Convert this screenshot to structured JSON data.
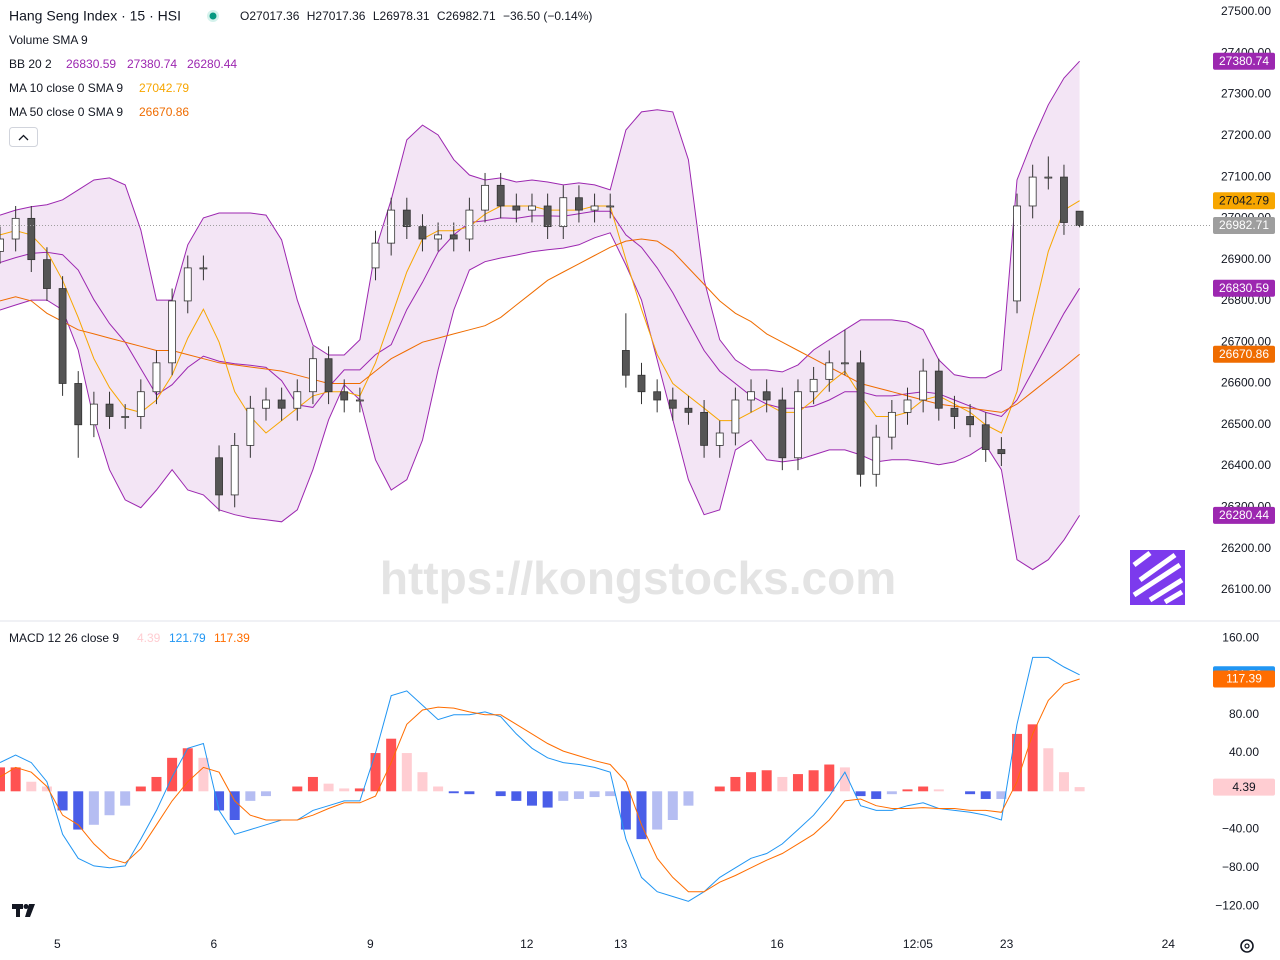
{
  "header": {
    "title": "Hang Seng Index · 15 · HSI",
    "ohlc_labels": [
      "O",
      "H",
      "L",
      "C"
    ],
    "change": "−36.50 (−0.14%)",
    "volume_legend": "Volume SMA 9",
    "watermark": "https://kongstocks.com"
  },
  "chart_data": [
    {
      "type": "candlestick",
      "x": [
        0,
        3,
        6,
        9,
        12,
        15,
        18,
        21,
        24,
        27,
        30,
        33,
        36,
        39,
        42,
        45,
        48,
        51,
        54,
        57,
        60,
        63,
        66,
        69,
        72,
        75,
        78,
        81,
        84,
        87,
        90,
        93,
        96,
        99,
        102,
        105,
        108,
        111,
        114,
        117,
        120,
        123,
        126,
        129,
        132,
        135,
        138,
        141,
        144,
        147,
        150,
        153,
        156,
        159,
        162,
        165,
        168,
        171,
        174,
        177,
        180,
        183,
        186,
        189,
        192,
        195,
        198,
        201,
        204,
        207
      ],
      "open": [
        26920,
        26950,
        27000,
        26900,
        26830,
        26600,
        26500,
        26550,
        26520,
        26520,
        26580,
        26650,
        26800,
        26880,
        26420,
        26330,
        26450,
        26540,
        26560,
        26540,
        26580,
        26660,
        26580,
        26560,
        26880,
        26940,
        27020,
        26980,
        26950,
        26960,
        26950,
        27020,
        27080,
        27030,
        27020,
        27030,
        26980,
        27050,
        27020,
        27030,
        26680,
        26620,
        26580,
        26560,
        26540,
        26530,
        26450,
        26480,
        26560,
        26580,
        26560,
        26420,
        26580,
        26610,
        26650,
        26650,
        26380,
        26470,
        26530,
        26560,
        26630,
        26540,
        26520,
        26500,
        26440,
        26800,
        27030,
        27100,
        27100,
        27017.36
      ],
      "high": [
        26980,
        27030,
        27030,
        26930,
        26860,
        26630,
        26580,
        26580,
        26550,
        26610,
        26680,
        26830,
        26910,
        26910,
        26450,
        26480,
        26570,
        26590,
        26590,
        26610,
        26690,
        26690,
        26610,
        26590,
        26970,
        27050,
        27050,
        27010,
        26990,
        26990,
        27050,
        27110,
        27110,
        27060,
        27060,
        27060,
        27080,
        27080,
        27060,
        27060,
        26770,
        26650,
        26610,
        26590,
        26570,
        26560,
        26510,
        26590,
        26610,
        26610,
        26590,
        26610,
        26640,
        26680,
        26730,
        26680,
        26500,
        26560,
        26590,
        26660,
        26660,
        26570,
        26550,
        26530,
        26470,
        27060,
        27130,
        27150,
        27130,
        27017.36
      ],
      "low": [
        26890,
        26920,
        26870,
        26800,
        26570,
        26420,
        26470,
        26490,
        26490,
        26490,
        26550,
        26620,
        26770,
        26850,
        26290,
        26300,
        26420,
        26510,
        26510,
        26510,
        26550,
        26550,
        26530,
        26530,
        26850,
        26910,
        26950,
        26920,
        26920,
        26920,
        26920,
        26990,
        27000,
        26990,
        26990,
        26950,
        26950,
        26990,
        26990,
        27000,
        26590,
        26550,
        26530,
        26510,
        26500,
        26420,
        26420,
        26450,
        26530,
        26530,
        26390,
        26390,
        26550,
        26580,
        26620,
        26350,
        26350,
        26440,
        26500,
        26530,
        26510,
        26490,
        26470,
        26410,
        26400,
        26770,
        27000,
        27070,
        26960,
        26978.31
      ],
      "close": [
        26950,
        27000,
        26900,
        26830,
        26600,
        26500,
        26550,
        26520,
        26520,
        26580,
        26650,
        26800,
        26880,
        26880,
        26330,
        26450,
        26540,
        26560,
        26540,
        26580,
        26660,
        26580,
        26560,
        26560,
        26940,
        27020,
        26980,
        26950,
        26960,
        26950,
        27020,
        27080,
        27030,
        27020,
        27030,
        26980,
        27050,
        27020,
        27030,
        27030,
        26620,
        26580,
        26560,
        26540,
        26530,
        26450,
        26480,
        26560,
        26580,
        26560,
        26420,
        26580,
        26610,
        26650,
        26650,
        26380,
        26470,
        26530,
        26560,
        26630,
        26540,
        26520,
        26500,
        26440,
        26430,
        27030,
        27100,
        27100,
        26990,
        26982.71
      ],
      "up_color": "#ffffff",
      "down_color": "#555555",
      "wick_color": "#333333",
      "last_price_color": "#9e9e9e",
      "bollinger": {
        "label": "BB 20 2",
        "color": "#9c27b0",
        "fill_color": "#f3e5f5",
        "basis": [
          26893,
          26905,
          26915,
          26918,
          26912,
          26875,
          26803,
          26745,
          26700,
          26636,
          26572,
          26597,
          26639,
          26666,
          26654,
          26648,
          26644,
          26639,
          26607,
          26548,
          26542,
          26591,
          26633,
          26633,
          26670,
          26694,
          26779,
          26845,
          26918,
          26960,
          26990,
          26994,
          27001,
          27000,
          27006,
          27006,
          27005,
          27011,
          27017,
          27017,
          26960,
          26930,
          26880,
          26820,
          26750,
          26680,
          26630,
          26600,
          26570,
          26550,
          26540,
          26540,
          26545,
          26560,
          26580,
          26580,
          26570,
          26570,
          26575,
          26580,
          26575,
          26560,
          26545,
          26530,
          26520,
          26560,
          26630,
          26700,
          26770,
          26830.59
        ],
        "upper": [
          27008,
          27020,
          27028,
          27033,
          27045,
          27069,
          27093,
          27098,
          27081,
          26972,
          26802,
          26802,
          26936,
          27001,
          27013,
          27013,
          27013,
          27008,
          26948,
          26802,
          26693,
          26669,
          26669,
          26706,
          26924,
          27045,
          27190,
          27226,
          27202,
          27142,
          27105,
          27093,
          27098,
          27088,
          27093,
          27088,
          27081,
          27086,
          27081,
          27069,
          27214,
          27258,
          27263,
          27258,
          27142,
          26851,
          26706,
          26657,
          26633,
          26633,
          26628,
          26645,
          26681,
          26706,
          26730,
          26754,
          26754,
          26754,
          26749,
          26730,
          26657,
          26621,
          26614,
          26614,
          26633,
          27093,
          27190,
          27275,
          27340,
          27380.74
        ],
        "lower": [
          26778,
          26790,
          26802,
          26802,
          26778,
          26681,
          26512,
          26391,
          26318,
          26299,
          26342,
          26391,
          26342,
          26330,
          26294,
          26282,
          26274,
          26270,
          26265,
          26294,
          26391,
          26512,
          26597,
          26560,
          26415,
          26342,
          26367,
          26463,
          26633,
          26778,
          26875,
          26895,
          26904,
          26911,
          26919,
          26924,
          26928,
          26936,
          26953,
          26965,
          26887,
          26802,
          26657,
          26512,
          26367,
          26282,
          26294,
          26439,
          26463,
          26415,
          26410,
          26415,
          26427,
          26439,
          26439,
          26427,
          26410,
          26415,
          26415,
          26410,
          26403,
          26410,
          26427,
          26451,
          26391,
          26173,
          26149,
          26173,
          26221,
          26280.44
        ]
      },
      "moving_averages": [
        {
          "label": "MA 10 close 0 SMA 9",
          "color": "#f7a600",
          "values": [
            26960,
            26970,
            26960,
            26920,
            26850,
            26760,
            26660,
            26590,
            26540,
            26530,
            26560,
            26620,
            26710,
            26780,
            26700,
            26580,
            26520,
            26480,
            26510,
            26540,
            26570,
            26580,
            26580,
            26570,
            26650,
            26760,
            26870,
            26950,
            26970,
            26970,
            26980,
            27010,
            27030,
            27030,
            27030,
            27020,
            27020,
            27020,
            27030,
            27030,
            26900,
            26780,
            26670,
            26600,
            26570,
            26540,
            26510,
            26510,
            26530,
            26550,
            26530,
            26530,
            26560,
            26600,
            26630,
            26570,
            26520,
            26520,
            26530,
            26560,
            26570,
            26550,
            26530,
            26500,
            26480,
            26580,
            26760,
            26920,
            27020,
            27042.79
          ]
        },
        {
          "label": "MA 50 close 0 SMA 9",
          "color": "#ef6c00",
          "values": [
            26800,
            26810,
            26800,
            26770,
            26750,
            26730,
            26720,
            26710,
            26700,
            26690,
            26680,
            26680,
            26670,
            26660,
            26650,
            26645,
            26640,
            26635,
            26630,
            26620,
            26610,
            26600,
            26600,
            26600,
            26630,
            26660,
            26680,
            26700,
            26710,
            26720,
            26730,
            26740,
            26760,
            26790,
            26820,
            26850,
            26870,
            26890,
            26910,
            26930,
            26945,
            26950,
            26945,
            26920,
            26880,
            26840,
            26800,
            26770,
            26750,
            26720,
            26700,
            26680,
            26660,
            26640,
            26620,
            26600,
            26590,
            26580,
            26570,
            26560,
            26550,
            26545,
            26540,
            26535,
            26530,
            26550,
            26580,
            26610,
            26640,
            26670.86
          ]
        }
      ],
      "xlim": [
        0,
        232
      ],
      "xticks": [
        {
          "value": 11,
          "label": "5"
        },
        {
          "value": 41,
          "label": "6"
        },
        {
          "value": 71,
          "label": "9"
        },
        {
          "value": 101,
          "label": "12"
        },
        {
          "value": 119,
          "label": "13"
        },
        {
          "value": 149,
          "label": "16"
        },
        {
          "value": 176,
          "label": "12:05"
        },
        {
          "value": 193,
          "label": "23"
        },
        {
          "value": 224,
          "label": "24"
        }
      ],
      "ylim": [
        26027,
        27529
      ],
      "yticks": [
        {
          "value": 27500,
          "label": "27500.00"
        },
        {
          "value": 27400,
          "label": "27400.00"
        },
        {
          "value": 27300,
          "label": "27300.00"
        },
        {
          "value": 27200,
          "label": "27200.00"
        },
        {
          "value": 27100,
          "label": "27100.00"
        },
        {
          "value": 27000,
          "label": "27000.00"
        },
        {
          "value": 26900,
          "label": "26900.00"
        },
        {
          "value": 26800,
          "label": "26800.00"
        },
        {
          "value": 26700,
          "label": "26700.00"
        },
        {
          "value": 26600,
          "label": "26600.00"
        },
        {
          "value": 26500,
          "label": "26500.00"
        },
        {
          "value": 26400,
          "label": "26400.00"
        },
        {
          "value": 26300,
          "label": "26300.00"
        },
        {
          "value": 26200,
          "label": "26200.00"
        },
        {
          "value": 26100,
          "label": "26100.00"
        }
      ],
      "grid": false
    },
    {
      "type": "macd",
      "label": "MACD 12 26 close 9",
      "x": [
        0,
        3,
        6,
        9,
        12,
        15,
        18,
        21,
        24,
        27,
        30,
        33,
        36,
        39,
        42,
        45,
        48,
        51,
        54,
        57,
        60,
        63,
        66,
        69,
        72,
        75,
        78,
        81,
        84,
        87,
        90,
        93,
        96,
        99,
        102,
        105,
        108,
        111,
        114,
        117,
        120,
        123,
        126,
        129,
        132,
        135,
        138,
        141,
        144,
        147,
        150,
        153,
        156,
        159,
        162,
        165,
        168,
        171,
        174,
        177,
        180,
        183,
        186,
        189,
        192,
        195,
        198,
        201,
        204,
        207
      ],
      "histogram": [
        25,
        25,
        10,
        5,
        -20,
        -40,
        -35,
        -25,
        -15,
        5,
        15,
        35,
        45,
        35,
        -20,
        -30,
        -10,
        -5,
        0,
        5,
        15,
        8,
        3,
        3,
        40,
        55,
        40,
        20,
        5,
        -2,
        -3,
        0,
        -5,
        -10,
        -15,
        -17,
        -10,
        -8,
        -6,
        -5,
        -40,
        -50,
        -40,
        -30,
        -15,
        0,
        5,
        15,
        20,
        22,
        15,
        18,
        22,
        28,
        25,
        -5,
        -8,
        -3,
        2,
        5,
        2,
        0,
        -3,
        -8,
        -8,
        60,
        70,
        45,
        20,
        4.39
      ],
      "histogram_colors": {
        "rising_above": "#ff5252",
        "falling_above": "#ffcdd2",
        "falling_below": "#4a5ee8",
        "rising_below": "#b5bdf2"
      },
      "macd": {
        "color": "#2196f3",
        "values": [
          30,
          38,
          30,
          10,
          -45,
          -70,
          -78,
          -80,
          -78,
          -50,
          -20,
          15,
          45,
          50,
          -20,
          -45,
          -40,
          -35,
          -30,
          -30,
          -20,
          -15,
          -10,
          -10,
          40,
          100,
          105,
          90,
          75,
          80,
          80,
          83,
          78,
          60,
          45,
          35,
          30,
          28,
          25,
          20,
          -50,
          -90,
          -105,
          -110,
          -115,
          -105,
          -90,
          -80,
          -70,
          -65,
          -55,
          -40,
          -25,
          -5,
          20,
          -15,
          -20,
          -20,
          -15,
          -12,
          -18,
          -20,
          -22,
          -25,
          -30,
          70,
          140,
          140,
          130,
          121.79
        ]
      },
      "signal": {
        "color": "#ff6d00",
        "values": [
          15,
          25,
          20,
          5,
          -25,
          -35,
          -55,
          -70,
          -75,
          -60,
          -35,
          -10,
          10,
          25,
          20,
          -10,
          -25,
          -30,
          -30,
          -30,
          -25,
          -18,
          -12,
          -12,
          -5,
          30,
          70,
          85,
          88,
          87,
          83,
          80,
          80,
          70,
          60,
          50,
          42,
          37,
          32,
          28,
          10,
          -35,
          -70,
          -90,
          -105,
          -105,
          -95,
          -88,
          -80,
          -72,
          -65,
          -55,
          -45,
          -30,
          -10,
          -8,
          -15,
          -18,
          -18,
          -17,
          -18,
          -18,
          -20,
          -20,
          -22,
          10,
          60,
          95,
          112,
          117.39
        ]
      },
      "xlim": [
        0,
        232
      ],
      "ylim": [
        -145,
        177
      ],
      "yticks": [
        {
          "value": 160,
          "label": "160.00"
        },
        {
          "value": 80,
          "label": "80.00"
        },
        {
          "value": 40,
          "label": "40.00"
        },
        {
          "value": -40,
          "label": "−40.00"
        },
        {
          "value": -80,
          "label": "−80.00"
        },
        {
          "value": -120,
          "label": "−120.00"
        }
      ],
      "grid": false
    }
  ]
}
